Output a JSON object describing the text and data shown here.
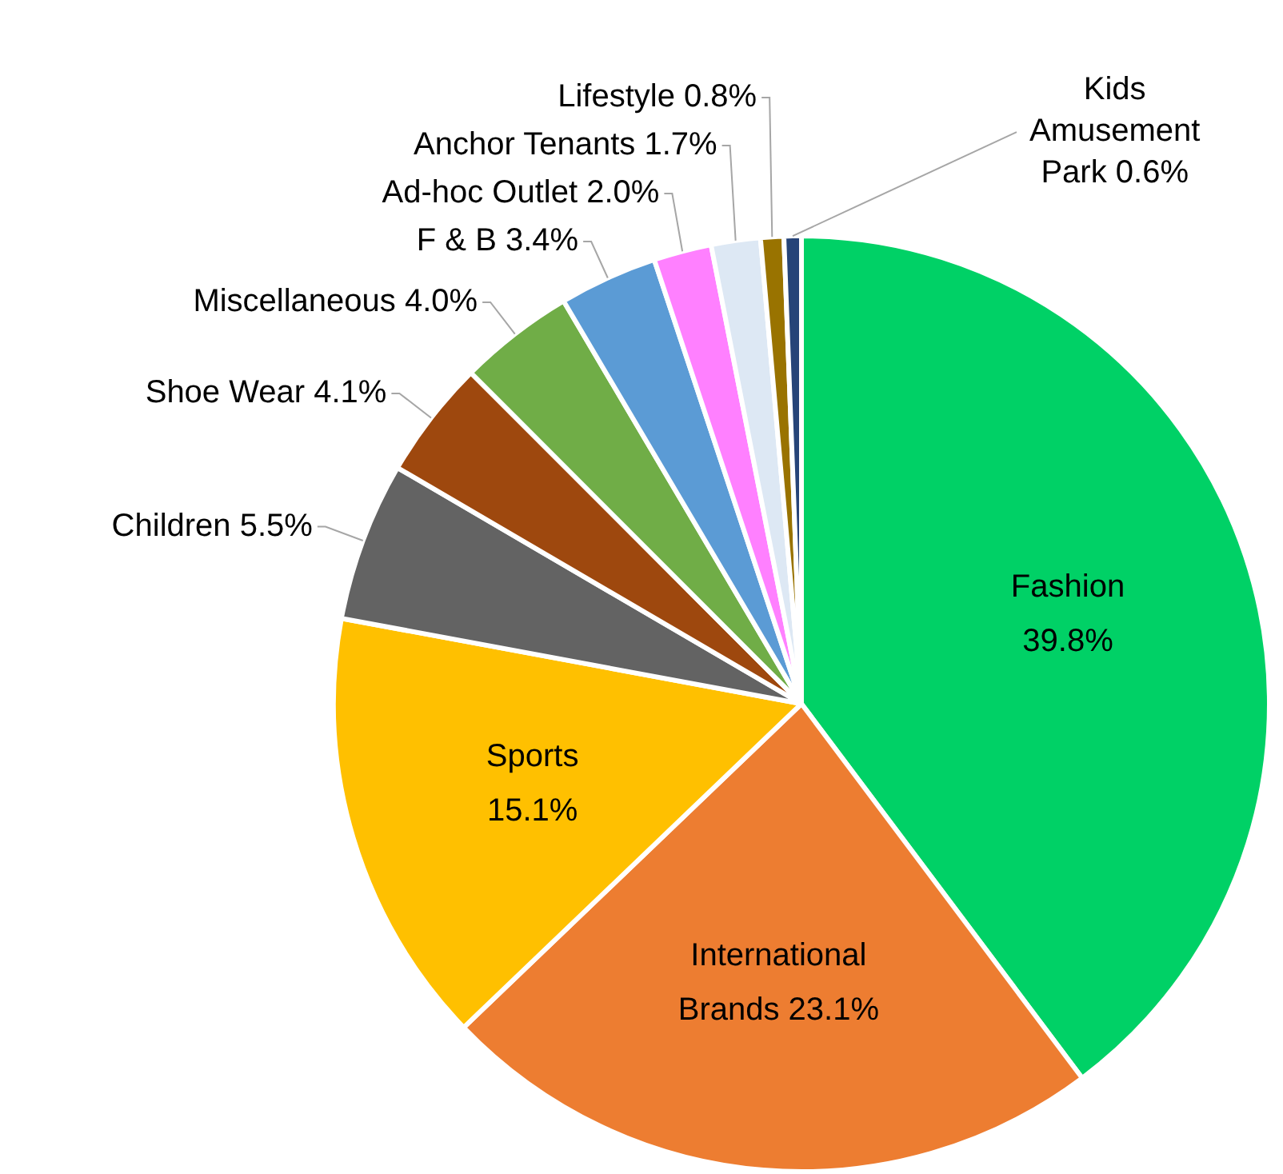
{
  "chart_data": {
    "type": "pie",
    "categories": [
      "Fashion",
      "International Brands",
      "Sports",
      "Children",
      "Shoe Wear",
      "Miscellaneous",
      "F & B",
      "Ad-hoc Outlet",
      "Anchor Tenants",
      "Lifestyle",
      "Kids Amusement Park"
    ],
    "values": [
      39.8,
      23.1,
      15.1,
      5.5,
      4.1,
      4.0,
      3.4,
      2.0,
      1.7,
      0.8,
      0.6
    ],
    "colors": [
      "#00d166",
      "#ed7d31",
      "#ffc000",
      "#636363",
      "#9e480e",
      "#70ad47",
      "#5b9bd5",
      "#ff80ff",
      "#dde8f4",
      "#997300",
      "#264478"
    ],
    "value_labels": [
      "39.8%",
      "23.1%",
      "15.1%",
      "5.5%",
      "4.1%",
      "4.0%",
      "3.4%",
      "2.0%",
      "1.7%",
      "0.8%",
      "0.6%"
    ],
    "legend": false
  }
}
